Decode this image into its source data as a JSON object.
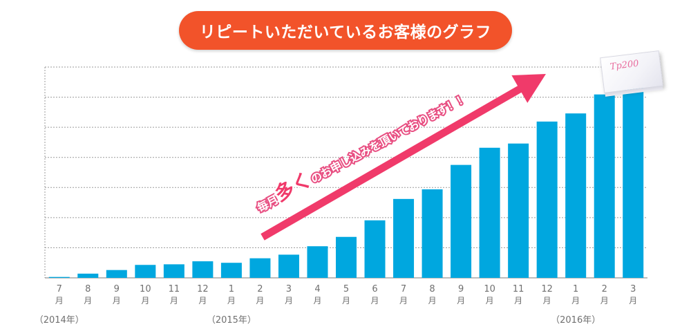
{
  "page_title": "リピートいただいているお客様のグラフ",
  "annotation": {
    "part1": "毎月",
    "emphasis": "多く",
    "part2": "のお申し込みを頂いております！！",
    "text_color": "#ffffff",
    "emphasis_color": "#f03a6a",
    "arrow_color": "#f03a6a"
  },
  "product_image": {
    "logo_text": "Tp200"
  },
  "chart_data": {
    "type": "bar",
    "title": "リピートいただいているお客様のグラフ",
    "xlabel": "",
    "ylabel": "",
    "y_tick_labels_shown": false,
    "grid": true,
    "grid_style": "dashed",
    "legend": "none",
    "bar_color": "#00a7df",
    "ylim": [
      0,
      7
    ],
    "categories": [
      {
        "month": "7",
        "unit": "月"
      },
      {
        "month": "8",
        "unit": "月"
      },
      {
        "month": "9",
        "unit": "月"
      },
      {
        "month": "10",
        "unit": "月"
      },
      {
        "month": "11",
        "unit": "月"
      },
      {
        "month": "12",
        "unit": "月"
      },
      {
        "month": "1",
        "unit": "月"
      },
      {
        "month": "2",
        "unit": "月"
      },
      {
        "month": "3",
        "unit": "月"
      },
      {
        "month": "4",
        "unit": "月"
      },
      {
        "month": "5",
        "unit": "月"
      },
      {
        "month": "6",
        "unit": "月"
      },
      {
        "month": "7",
        "unit": "月"
      },
      {
        "month": "8",
        "unit": "月"
      },
      {
        "month": "9",
        "unit": "月"
      },
      {
        "month": "10",
        "unit": "月"
      },
      {
        "month": "11",
        "unit": "月"
      },
      {
        "month": "12",
        "unit": "月"
      },
      {
        "month": "1",
        "unit": "月"
      },
      {
        "month": "2",
        "unit": "月"
      },
      {
        "month": "3",
        "unit": "月"
      }
    ],
    "values": [
      0.03,
      0.14,
      0.26,
      0.43,
      0.45,
      0.55,
      0.5,
      0.65,
      0.77,
      1.05,
      1.36,
      1.91,
      2.62,
      2.94,
      3.75,
      4.32,
      4.46,
      5.19,
      5.46,
      6.09,
      6.38
    ],
    "year_labels": [
      {
        "text": "（2014年）",
        "category_index": 0
      },
      {
        "text": "（2015年）",
        "category_index": 6
      },
      {
        "text": "（2016年）",
        "category_index": 18
      }
    ]
  }
}
